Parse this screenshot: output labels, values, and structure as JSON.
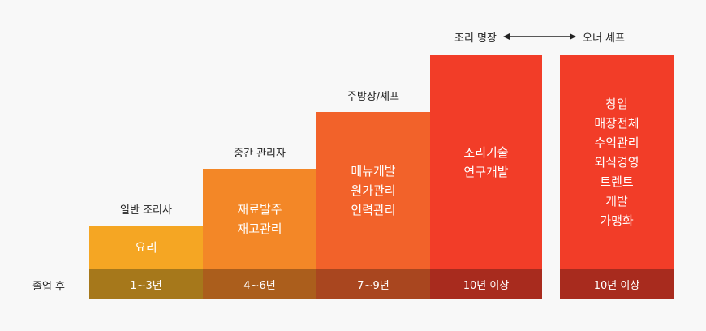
{
  "row_label": "졸업 후",
  "steps": [
    {
      "title": "일반 조리사",
      "body": [
        "요리"
      ],
      "period": "1~3년"
    },
    {
      "title": "중간 관리자",
      "body": [
        "재료발주",
        "재고관리"
      ],
      "period": "4~6년"
    },
    {
      "title": "주방장/셰프",
      "body": [
        "메뉴개발",
        "원가관리",
        "인력관리"
      ],
      "period": "7~9년"
    },
    {
      "title": "",
      "body": [
        "조리기술",
        "연구개발"
      ],
      "period": "10년 이상"
    },
    {
      "title": "",
      "body": [
        "창업",
        "매장전체",
        "수익관리",
        "외식경영",
        "트렌트",
        "개발",
        "가맹화"
      ],
      "period": "10년 이상"
    }
  ],
  "top_path": {
    "left": "조리 명장",
    "right": "오너 셰프",
    "arrow_icon": "double-arrow-icon"
  },
  "colors": {
    "step1": "#f5a623",
    "step2": "#f38727",
    "step3": "#f2622a",
    "step4": "#f23d28",
    "step5": "#f23d28"
  }
}
